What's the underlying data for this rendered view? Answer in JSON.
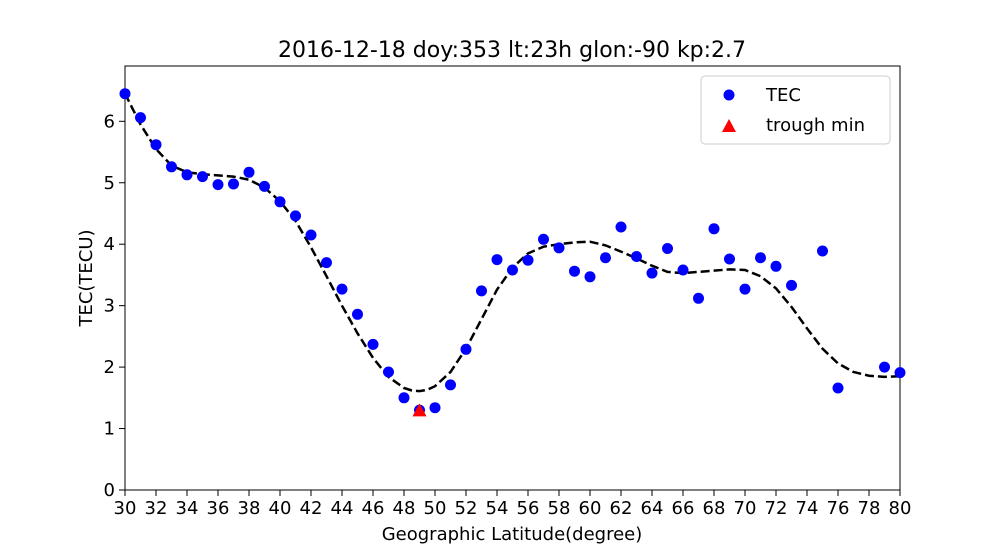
{
  "chart_data": {
    "type": "scatter",
    "title": "2016-12-18  doy:353  lt:23h  glon:-90  kp:2.7",
    "xlabel": "Geographic Latitude(degree)",
    "ylabel": "TEC(TECU)",
    "xlim": [
      30,
      80
    ],
    "ylim": [
      0,
      6.9
    ],
    "xticks": [
      "30",
      "32",
      "34",
      "36",
      "38",
      "40",
      "42",
      "44",
      "46",
      "48",
      "50",
      "52",
      "54",
      "56",
      "58",
      "60",
      "62",
      "64",
      "66",
      "68",
      "70",
      "72",
      "74",
      "76",
      "78",
      "80"
    ],
    "yticks": [
      "0",
      "1",
      "2",
      "3",
      "4",
      "5",
      "6"
    ],
    "legend_position": "top-right",
    "grid": false,
    "colors": {
      "tec": "#0000ff",
      "trough": "#ff0000",
      "fit": "#000000"
    },
    "series": [
      {
        "name": "TEC",
        "kind": "scatter",
        "x": [
          30,
          31,
          32,
          33,
          34,
          35,
          36,
          37,
          38,
          39,
          40,
          41,
          42,
          43,
          44,
          45,
          46,
          47,
          48,
          49,
          50,
          51,
          52,
          53,
          54,
          55,
          56,
          57,
          58,
          59,
          60,
          61,
          62,
          63,
          64,
          65,
          66,
          67,
          68,
          69,
          70,
          71,
          72,
          73,
          75,
          76,
          79,
          80
        ],
        "y": [
          6.45,
          6.06,
          5.62,
          5.26,
          5.13,
          5.1,
          4.97,
          4.98,
          5.17,
          4.94,
          4.69,
          4.46,
          4.15,
          3.7,
          3.27,
          2.86,
          2.37,
          1.92,
          1.5,
          1.3,
          1.34,
          1.71,
          2.29,
          3.24,
          3.75,
          3.58,
          3.74,
          4.08,
          3.94,
          3.56,
          3.47,
          3.78,
          4.28,
          3.8,
          3.53,
          3.93,
          3.58,
          3.12,
          4.25,
          3.76,
          3.27,
          3.78,
          3.64,
          3.33,
          3.89,
          1.66,
          2.0,
          1.91
        ]
      },
      {
        "name": "trough min",
        "kind": "marker",
        "x": [
          49
        ],
        "y": [
          1.28
        ]
      },
      {
        "kind": "fit",
        "x": [
          30,
          31,
          32,
          33,
          34,
          35,
          36,
          37,
          38,
          39,
          40,
          41,
          42,
          43,
          44,
          45,
          46,
          47,
          48,
          48.5,
          49,
          49.5,
          50,
          51,
          52,
          53,
          54,
          55,
          56,
          57,
          58,
          59,
          60,
          61,
          62,
          63,
          64,
          65,
          66,
          67,
          68,
          69,
          70,
          71,
          72,
          73,
          74,
          75,
          76,
          77,
          78,
          79,
          80
        ],
        "y": [
          6.45,
          5.95,
          5.55,
          5.28,
          5.17,
          5.14,
          5.12,
          5.1,
          5.05,
          4.92,
          4.7,
          4.38,
          3.95,
          3.48,
          3.0,
          2.55,
          2.15,
          1.84,
          1.66,
          1.62,
          1.61,
          1.63,
          1.69,
          1.92,
          2.3,
          2.78,
          3.26,
          3.62,
          3.85,
          3.96,
          4.0,
          4.03,
          4.04,
          3.98,
          3.88,
          3.77,
          3.65,
          3.55,
          3.53,
          3.55,
          3.57,
          3.59,
          3.58,
          3.48,
          3.28,
          2.98,
          2.63,
          2.3,
          2.06,
          1.92,
          1.86,
          1.84,
          1.85
        ]
      }
    ]
  }
}
